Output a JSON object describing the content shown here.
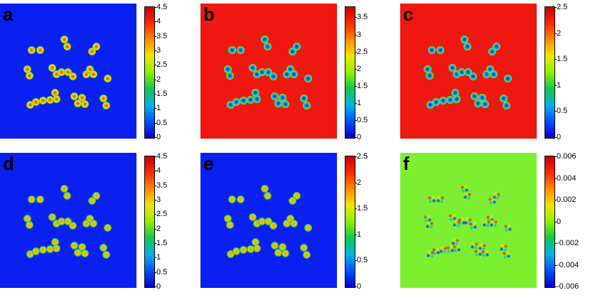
{
  "panels": [
    {
      "letter": "a",
      "background": "#0a20f0",
      "spot_style": "peak",
      "ticks": [
        "4.5",
        "4",
        "3.5",
        "3",
        "2.5",
        "2",
        "1.5",
        "1",
        "0.5",
        "0"
      ]
    },
    {
      "letter": "b",
      "background": "#ee1810",
      "spot_style": "dip",
      "ticks": [
        "3.5",
        "3",
        "2.5",
        "2",
        "1.5",
        "1",
        "0.5",
        "0"
      ]
    },
    {
      "letter": "c",
      "background": "#ee1810",
      "spot_style": "dip",
      "ticks": [
        "2.5",
        "2",
        "1.5",
        "1",
        "0.5",
        "0"
      ]
    },
    {
      "letter": "d",
      "background": "#0a20f0",
      "spot_style": "ring",
      "ticks": [
        "4.5",
        "4",
        "3.5",
        "3",
        "2.5",
        "2",
        "1.5",
        "1",
        "0.5",
        "0"
      ]
    },
    {
      "letter": "e",
      "background": "#0a20f0",
      "spot_style": "ring",
      "ticks": [
        "2.5",
        "2",
        "1.5",
        "1",
        "0.5",
        "0"
      ]
    },
    {
      "letter": "f",
      "background": "#7cf030",
      "spot_style": "dipole",
      "ticks": [
        "0.006",
        "0.004",
        "0.002",
        "0",
        "-0.002",
        "-0.004",
        "-0.006"
      ]
    }
  ],
  "colormap": [
    "#0000c8",
    "#0050ff",
    "#00b4e6",
    "#10c850",
    "#8cf000",
    "#f0e600",
    "#ff8c00",
    "#ff2800",
    "#c80000"
  ]
}
